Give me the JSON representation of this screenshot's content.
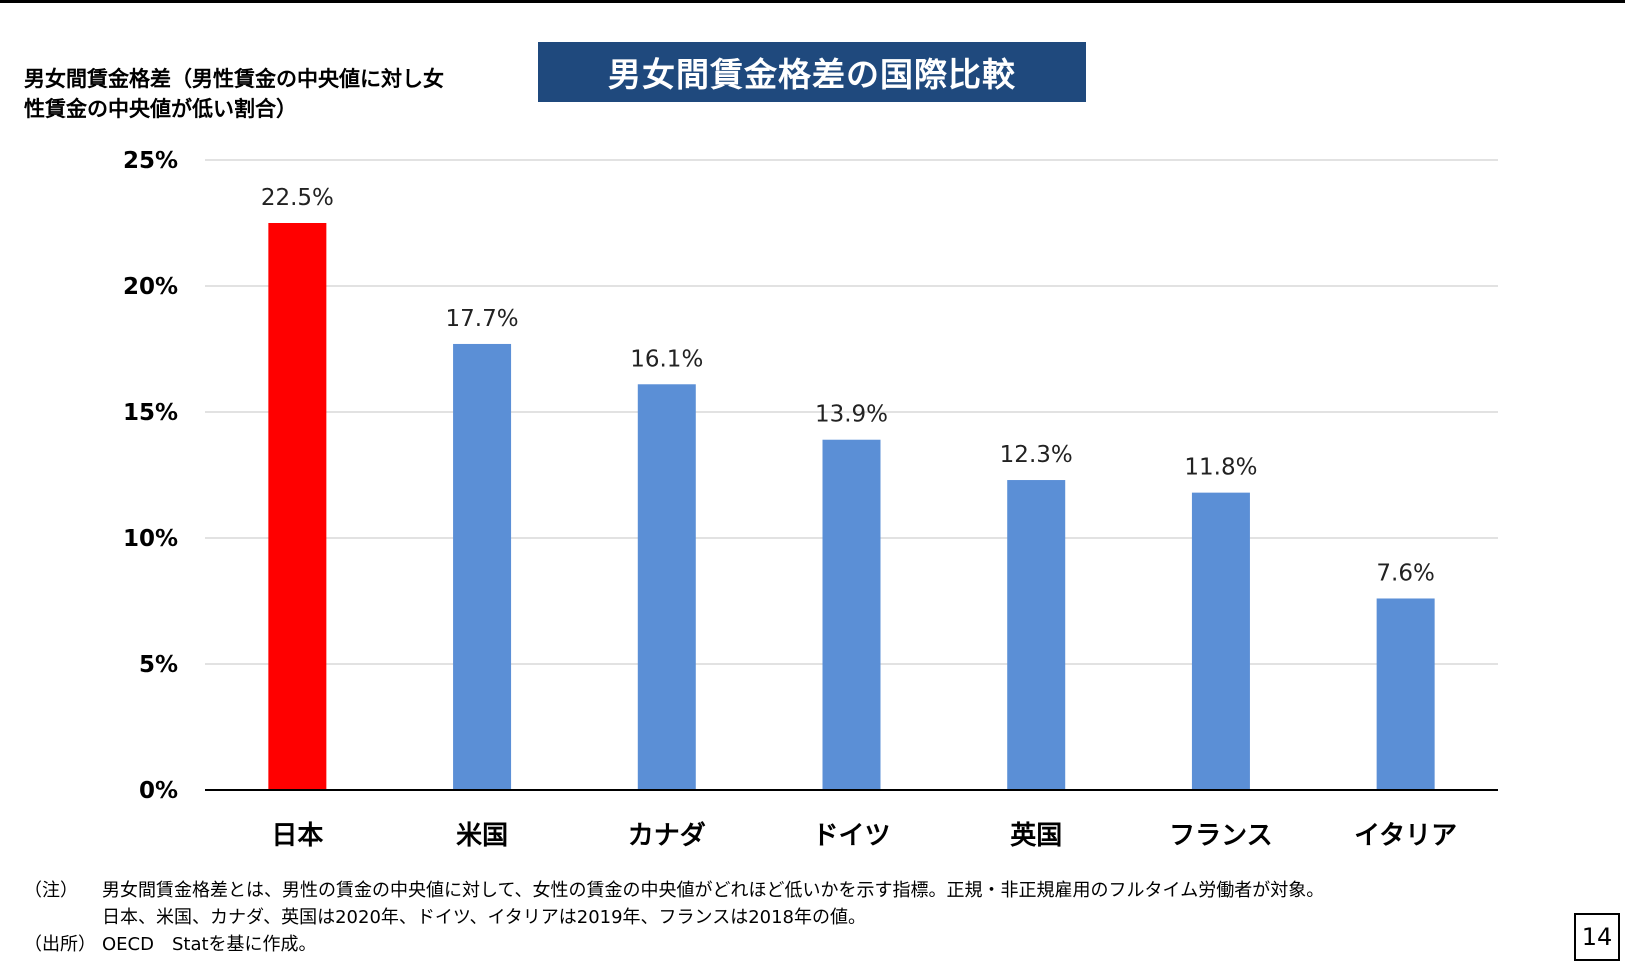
{
  "title": "男女間賃金格差の国際比較",
  "page_number": "14",
  "colors": {
    "highlight": "#ff0000",
    "bar": "#5b8fd6",
    "title_bg": "#1f497d"
  },
  "chart_data": {
    "type": "bar",
    "ylabel": "男女間賃金格差（男性賃金の中央値に対し女性賃金の中央値が低い割合）",
    "categories": [
      "日本",
      "米国",
      "カナダ",
      "ドイツ",
      "英国",
      "フランス",
      "イタリア"
    ],
    "values": [
      22.5,
      17.7,
      16.1,
      13.9,
      12.3,
      11.8,
      7.6
    ],
    "value_labels": [
      "22.5%",
      "17.7%",
      "16.1%",
      "13.9%",
      "12.3%",
      "11.8%",
      "7.6%"
    ],
    "highlight_index": 0,
    "ylim": [
      0,
      25
    ],
    "yticks": [
      0,
      5,
      10,
      15,
      20,
      25
    ],
    "ytick_labels": [
      "0%",
      "5%",
      "10%",
      "15%",
      "20%",
      "25%"
    ],
    "grid": true
  },
  "notes": {
    "note_key": "（注）",
    "note_line1": "男女間賃金格差とは、男性の賃金の中央値に対して、女性の賃金の中央値がどれほど低いかを示す指標。正規・非正規雇用のフルタイム労働者が対象。",
    "note_line2": "日本、米国、カナダ、英国は2020年、ドイツ、イタリアは2019年、フランスは2018年の値。",
    "source_key": "（出所）",
    "source_text": "OECD　Statを基に作成。"
  }
}
